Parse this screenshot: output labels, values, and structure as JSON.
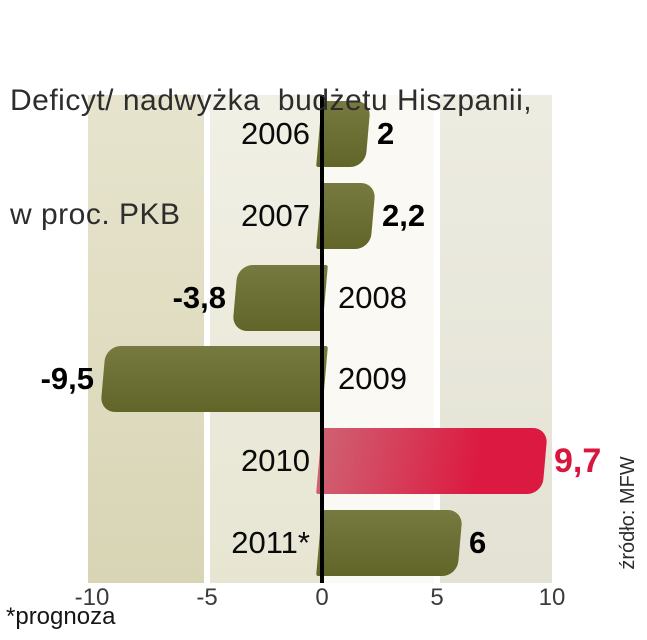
{
  "title": {
    "line1": "Deficyt/ nadwyżka  budżetu Hiszpanii,",
    "line2": "w proc. PKB"
  },
  "footnote": "*prognoza",
  "source": "źródło: MFW",
  "colors": {
    "olive": "#626528",
    "olive_light": "#777a40",
    "red": "#dc1a41",
    "red_light": "#cf6272",
    "value_red": "#d8173f",
    "axis": "#000000",
    "band_dark": "#d8d5b5",
    "band_light": "#faf9f3"
  },
  "chart_data": {
    "type": "bar",
    "orientation": "horizontal",
    "title": "Deficyt/ nadwyżka budżetu Hiszpanii, w proc. PKB",
    "categories": [
      "2006",
      "2007",
      "2008",
      "2009",
      "2010",
      "2011*"
    ],
    "values": [
      2,
      2.2,
      -3.8,
      -9.5,
      9.7,
      6
    ],
    "value_labels": [
      "2",
      "2,2",
      "-3,8",
      "-9,5",
      "9,7",
      "6"
    ],
    "bar_colors": [
      "olive",
      "olive",
      "olive",
      "olive",
      "red",
      "olive"
    ],
    "highlight_index": 4,
    "xlim": [
      -10,
      10
    ],
    "x_ticks": [
      "-10",
      "-5",
      "0",
      "5",
      "10"
    ],
    "x_tick_values": [
      -10,
      -5,
      0,
      5,
      10
    ],
    "xlabel": "",
    "ylabel": "",
    "grid": "vertical-bands",
    "footnote": "*prognoza",
    "source": "źródło: MFW"
  }
}
